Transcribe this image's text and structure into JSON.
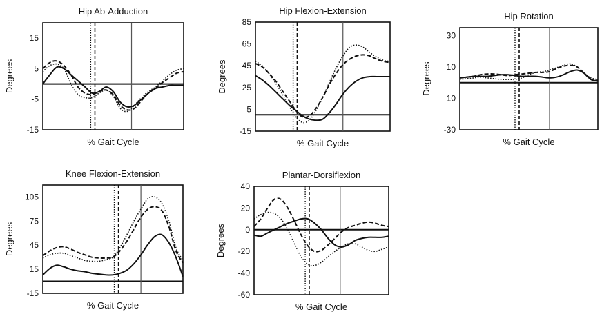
{
  "chart_data": [
    {
      "type": "line",
      "title": "Hip Ab-Adduction",
      "xlabel": "% Gait Cycle",
      "ylabel": "Degrees",
      "ylim": [
        -15,
        20
      ],
      "yticks": [
        15,
        5,
        -5,
        -15
      ],
      "x": [
        0,
        5,
        10,
        15,
        20,
        25,
        30,
        35,
        40,
        45,
        50,
        55,
        60,
        65,
        70,
        75,
        80,
        85,
        90,
        95,
        100
      ],
      "vlines": [
        {
          "x": 34,
          "style": "dotted"
        },
        {
          "x": 37,
          "style": "dashed"
        },
        {
          "x": 63,
          "style": "solid"
        }
      ],
      "series": [
        {
          "style": "solid",
          "values": [
            0,
            3,
            5.5,
            5,
            3,
            1,
            -1,
            -3,
            -2.5,
            -1,
            -2.5,
            -6,
            -7.5,
            -7,
            -5,
            -3,
            -1.5,
            -1,
            -0.5,
            -0.5,
            -0.5
          ]
        },
        {
          "style": "dashed",
          "values": [
            5,
            7,
            7.5,
            6,
            3,
            -1,
            -3,
            -3.5,
            -2.5,
            -2,
            -3.5,
            -7,
            -8.5,
            -8,
            -5.5,
            -3,
            -1.5,
            0.5,
            2,
            3.5,
            4
          ]
        },
        {
          "style": "dotted",
          "values": [
            4,
            6,
            6.5,
            5,
            0,
            -3.5,
            -4.5,
            -4.5,
            -3,
            -2,
            -4,
            -8,
            -9,
            -7,
            -4.5,
            -2.5,
            -1,
            1,
            3,
            4.5,
            5
          ]
        }
      ]
    },
    {
      "type": "line",
      "title": "Hip Flexion-Extension",
      "xlabel": "% Gait Cycle",
      "ylabel": "Degrees",
      "ylim": [
        -15,
        85
      ],
      "yticks": [
        85,
        65,
        45,
        25,
        5,
        -15
      ],
      "x": [
        0,
        5,
        10,
        15,
        20,
        25,
        30,
        35,
        40,
        45,
        50,
        55,
        60,
        65,
        70,
        75,
        80,
        85,
        90,
        95,
        100
      ],
      "vlines": [
        {
          "x": 28,
          "style": "dotted"
        },
        {
          "x": 31,
          "style": "dashed"
        },
        {
          "x": 65,
          "style": "solid"
        }
      ],
      "series": [
        {
          "style": "solid",
          "values": [
            36,
            32,
            27,
            21,
            15,
            9,
            4,
            -1,
            -4,
            -5,
            -4,
            2,
            10,
            19,
            26,
            31,
            34,
            35,
            35,
            35,
            35
          ]
        },
        {
          "style": "dashed",
          "values": [
            47,
            44,
            38,
            31,
            22,
            13,
            4,
            -2,
            -1,
            6,
            16,
            28,
            38,
            46,
            51,
            54,
            55,
            54,
            51,
            49,
            48
          ]
        },
        {
          "style": "dotted",
          "values": [
            49,
            45,
            38,
            29,
            19,
            8,
            -2,
            -7,
            -5,
            4,
            16,
            30,
            43,
            54,
            62,
            64,
            62,
            57,
            53,
            50,
            49
          ]
        }
      ]
    },
    {
      "type": "line",
      "title": "Hip Rotation",
      "xlabel": "% Gait Cycle",
      "ylabel": "Degrees",
      "ylim": [
        -30,
        35
      ],
      "yticks": [
        30,
        10,
        -10,
        -30
      ],
      "x": [
        0,
        5,
        10,
        15,
        20,
        25,
        30,
        35,
        40,
        45,
        50,
        55,
        60,
        65,
        70,
        75,
        80,
        85,
        90,
        95,
        100
      ],
      "vlines": [
        {
          "x": 40,
          "style": "dotted"
        },
        {
          "x": 43,
          "style": "dashed"
        },
        {
          "x": 65,
          "style": "solid"
        }
      ],
      "series": [
        {
          "style": "solid",
          "values": [
            3,
            3.5,
            4,
            4,
            4,
            4.5,
            5,
            5,
            4.5,
            4,
            4,
            4,
            3.5,
            3,
            3.5,
            5,
            7,
            8,
            6,
            2,
            1
          ]
        },
        {
          "style": "dashed",
          "values": [
            3,
            3.5,
            4,
            5,
            5.5,
            5.5,
            5,
            4.5,
            5,
            5.5,
            6,
            6.5,
            6.5,
            7,
            9,
            10.5,
            11,
            10,
            6,
            2,
            1.5
          ]
        },
        {
          "style": "dotted",
          "values": [
            2,
            2.5,
            3,
            3.5,
            3,
            2.5,
            2,
            2,
            2,
            3,
            5,
            6.5,
            7,
            8,
            9.5,
            11,
            12,
            10,
            6,
            3,
            2
          ]
        }
      ]
    },
    {
      "type": "line",
      "title": "Knee Flexion-Extension",
      "xlabel": "% Gait Cycle",
      "ylabel": "Degrees",
      "ylim": [
        -15,
        120
      ],
      "yticks": [
        105,
        75,
        45,
        15,
        -15
      ],
      "x": [
        0,
        5,
        10,
        15,
        20,
        25,
        30,
        35,
        40,
        45,
        50,
        55,
        60,
        65,
        70,
        75,
        80,
        85,
        90,
        95,
        100
      ],
      "vlines": [
        {
          "x": 51,
          "style": "dotted"
        },
        {
          "x": 54,
          "style": "dashed"
        },
        {
          "x": 70,
          "style": "solid"
        }
      ],
      "series": [
        {
          "style": "solid",
          "values": [
            8,
            16,
            20,
            18,
            15,
            13,
            12,
            10,
            9,
            8,
            8,
            10,
            14,
            22,
            33,
            46,
            56,
            58,
            48,
            30,
            6
          ]
        },
        {
          "style": "dashed",
          "values": [
            32,
            38,
            42,
            43,
            40,
            36,
            33,
            30,
            29,
            29,
            30,
            38,
            50,
            65,
            80,
            90,
            93,
            88,
            68,
            38,
            23
          ]
        },
        {
          "style": "dotted",
          "values": [
            29,
            33,
            35,
            35,
            32,
            29,
            26,
            25,
            25,
            27,
            30,
            42,
            58,
            75,
            90,
            103,
            105,
            97,
            75,
            42,
            26
          ]
        }
      ]
    },
    {
      "type": "line",
      "title": "Plantar-Dorsiflexion",
      "xlabel": "% Gait Cycle",
      "ylabel": "Degrees",
      "ylim": [
        -60,
        40
      ],
      "yticks": [
        40,
        20,
        0,
        -20,
        -40,
        -60
      ],
      "x": [
        0,
        5,
        10,
        15,
        20,
        25,
        30,
        35,
        40,
        45,
        50,
        55,
        60,
        65,
        70,
        75,
        80,
        85,
        90,
        95,
        100
      ],
      "vlines": [
        {
          "x": 38,
          "style": "dotted"
        },
        {
          "x": 41,
          "style": "dashed"
        },
        {
          "x": 64,
          "style": "solid"
        }
      ],
      "series": [
        {
          "style": "solid",
          "values": [
            -5,
            -6,
            -3,
            0,
            3,
            6,
            8,
            10,
            10,
            6,
            0,
            -8,
            -14,
            -16,
            -14,
            -10,
            -8,
            -7,
            -7,
            -7,
            -6
          ]
        },
        {
          "style": "dashed",
          "values": [
            3,
            10,
            20,
            28,
            28,
            20,
            8,
            -5,
            -15,
            -20,
            -19,
            -14,
            -8,
            -2,
            2,
            4,
            6,
            7,
            6,
            4,
            3
          ]
        },
        {
          "style": "dotted",
          "values": [
            10,
            14,
            16,
            15,
            10,
            0,
            -13,
            -25,
            -32,
            -33,
            -30,
            -25,
            -20,
            -16,
            -13,
            -13,
            -16,
            -19,
            -20,
            -18,
            -16
          ]
        }
      ]
    }
  ]
}
